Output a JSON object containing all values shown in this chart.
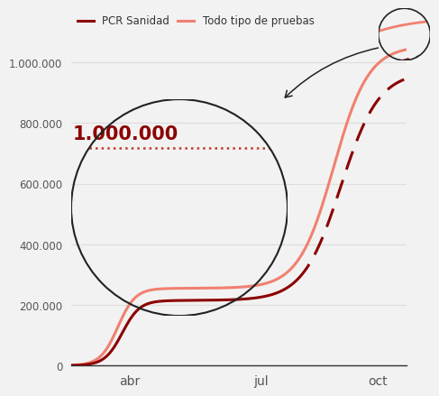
{
  "legend_pcr": "PCR Sanidad",
  "legend_todo": "Todo tipo de pruebas",
  "color_pcr": "#8B0000",
  "color_todo": "#F08070",
  "ylim": [
    0,
    1100000
  ],
  "yticks": [
    0,
    200000,
    400000,
    600000,
    800000,
    1000000
  ],
  "ytick_labels": [
    "0",
    "200.000",
    "400.000",
    "600.000",
    "800.000",
    "1.000.000"
  ],
  "xtick_labels": [
    "abr",
    "jul",
    "oct"
  ],
  "annotation_text": "1.000.000",
  "bg_color": "#F2F2F2",
  "dotted_line_y": 775000,
  "dotted_line_color": "#C0392B",
  "grid_color": "#DDDDDD",
  "axis_color": "#333333",
  "text_color": "#555555"
}
